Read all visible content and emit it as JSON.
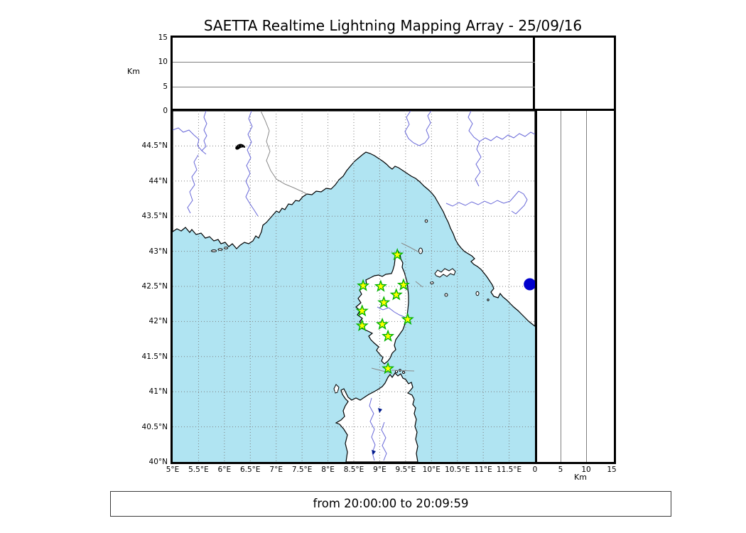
{
  "title": "SAETTA Realtime Lightning Mapping Array - 25/09/16",
  "footer": {
    "time_range": "from 20:00:00 to 20:09:59"
  },
  "altitude_axis": {
    "unit": "Km",
    "max_km": 15,
    "top_ticks": [
      "15",
      "10",
      "5",
      "0"
    ],
    "right_ticks": [
      "0",
      "5",
      "10",
      "15"
    ],
    "gridlines_km": [
      5,
      10
    ]
  },
  "map": {
    "extent": {
      "lon_min": 5,
      "lon_max": 12,
      "lat_min": 40,
      "lat_max": 45
    },
    "lon_tick_labels": [
      "5°E",
      "5.5°E",
      "6°E",
      "6.5°E",
      "7°E",
      "7.5°E",
      "8°E",
      "8.5°E",
      "9°E",
      "9.5°E",
      "10°E",
      "10.5°E",
      "11°E",
      "11.5°E"
    ],
    "lat_tick_labels": [
      "44.5°N",
      "44°N",
      "43.5°N",
      "43°N",
      "42.5°N",
      "42°N",
      "41.5°N",
      "41°N",
      "40.5°N",
      "40°N"
    ],
    "colors": {
      "sea": "#b0e4f2",
      "land": "#ffffff",
      "coast": "#000000",
      "river": "#6868d8",
      "grid": "#7f7f7f",
      "border_line": "#8a8a8a",
      "station_fill": "#ffff00",
      "station_stroke": "#00b300",
      "event_marker": "#0000cd"
    },
    "stations": [
      {
        "lon": 9.34,
        "lat": 42.95
      },
      {
        "lon": 8.68,
        "lat": 42.51
      },
      {
        "lon": 9.02,
        "lat": 42.5
      },
      {
        "lon": 9.46,
        "lat": 42.52
      },
      {
        "lon": 9.32,
        "lat": 42.38
      },
      {
        "lon": 9.08,
        "lat": 42.27
      },
      {
        "lon": 8.66,
        "lat": 42.15
      },
      {
        "lon": 9.54,
        "lat": 42.03
      },
      {
        "lon": 8.66,
        "lat": 41.94
      },
      {
        "lon": 9.05,
        "lat": 41.96
      },
      {
        "lon": 9.16,
        "lat": 41.79
      },
      {
        "lon": 9.16,
        "lat": 41.33
      }
    ],
    "event_marker": {
      "lon": 11.9,
      "lat": 42.53
    }
  }
}
